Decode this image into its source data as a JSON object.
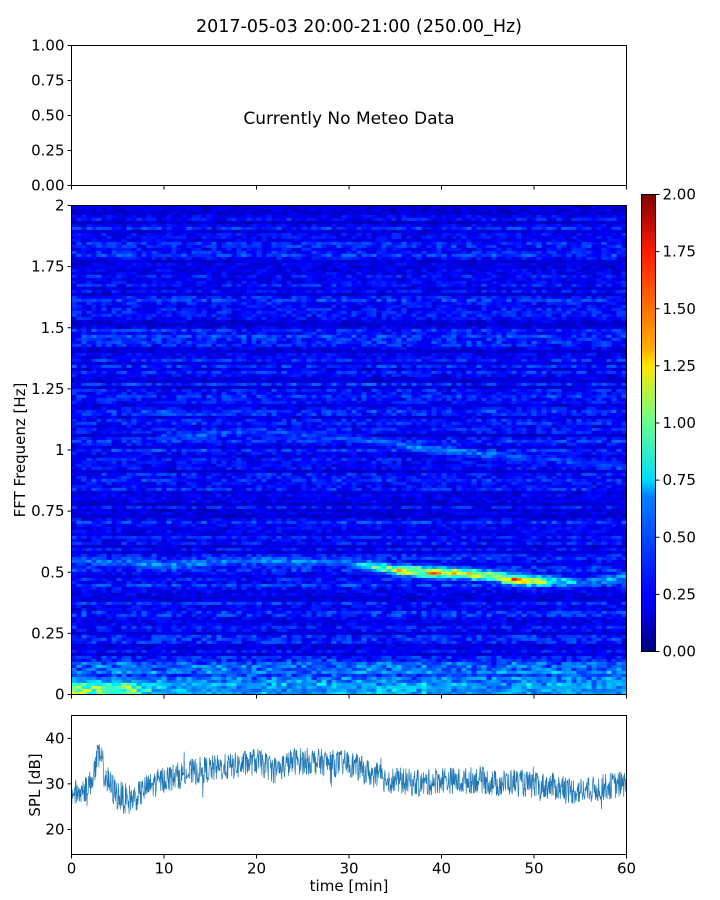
{
  "title": "2017-05-03 20:00-21:00 (250.00_Hz)",
  "chart_data": [
    {
      "id": "meteo",
      "type": "line",
      "message": "Currently No Meteo Data",
      "ylim": [
        0,
        1
      ],
      "yticks": [
        "0.00",
        "0.25",
        "0.50",
        "0.75",
        "1.00"
      ],
      "ytick_values": [
        0,
        0.25,
        0.5,
        0.75,
        1.0
      ],
      "xlim": [
        0,
        60
      ],
      "series": []
    },
    {
      "id": "spectrogram",
      "type": "heatmap",
      "ylabel": "FFT Frequenz [Hz]",
      "xlim": [
        0,
        60
      ],
      "ylim": [
        0,
        2
      ],
      "yticks": [
        "0",
        "0.25",
        "0.5",
        "0.75",
        "1",
        "1.25",
        "1.5",
        "1.75",
        "2"
      ],
      "ytick_values": [
        0,
        0.25,
        0.5,
        0.75,
        1,
        1.25,
        1.5,
        1.75,
        2
      ],
      "colormap": "jet",
      "clim": [
        0,
        2
      ],
      "colorbar_ticks": [
        "0.00",
        "0.25",
        "0.50",
        "0.75",
        "1.00",
        "1.25",
        "1.50",
        "1.75",
        "2.00"
      ],
      "colorbar_values": [
        0,
        0.25,
        0.5,
        0.75,
        1,
        1.25,
        1.5,
        1.75,
        2
      ],
      "features": [
        {
          "name": "band near 0.5 Hz",
          "t": [
            0,
            10,
            20,
            30,
            35,
            40,
            45,
            48,
            55,
            60
          ],
          "f": [
            0.55,
            0.53,
            0.55,
            0.54,
            0.51,
            0.5,
            0.49,
            0.47,
            0.46,
            0.48
          ],
          "level": [
            0.5,
            0.6,
            0.55,
            0.6,
            1.3,
            1.6,
            1.2,
            1.6,
            0.6,
            0.7
          ]
        },
        {
          "name": "band near 1 Hz",
          "t": [
            10,
            20,
            30,
            40,
            50,
            60
          ],
          "f": [
            1.05,
            1.08,
            1.05,
            1.0,
            0.97,
            0.93
          ],
          "level": [
            0.5,
            0.45,
            0.45,
            0.6,
            0.45,
            0.45
          ]
        },
        {
          "name": "low-frequency energy",
          "t": [
            0,
            3,
            6,
            10,
            15,
            20,
            25,
            30,
            35,
            40,
            45,
            50,
            55,
            60
          ],
          "f": [
            0.02,
            0.02,
            0.02,
            0.02,
            0.02,
            0.02,
            0.02,
            0.02,
            0.02,
            0.02,
            0.02,
            0.02,
            0.02,
            0.02
          ],
          "level": [
            1.4,
            1.1,
            1.2,
            0.7,
            0.6,
            0.5,
            0.5,
            0.6,
            0.7,
            0.6,
            0.5,
            0.6,
            0.6,
            0.6
          ]
        }
      ]
    },
    {
      "id": "spl",
      "type": "line",
      "ylabel": "SPL [dB]",
      "xlabel": "time [min]",
      "xlim": [
        0,
        60
      ],
      "ylim": [
        14.5,
        45
      ],
      "yticks": [
        "20",
        "30",
        "40"
      ],
      "ytick_values": [
        20,
        30,
        40
      ],
      "xticks": [
        "0",
        "10",
        "20",
        "30",
        "40",
        "50",
        "60"
      ],
      "xtick_values": [
        0,
        10,
        20,
        30,
        40,
        50,
        60
      ],
      "color": "#1f77b4",
      "series": [
        {
          "x": [
            0,
            1,
            2,
            3,
            4,
            5,
            6,
            7,
            8,
            9,
            10,
            12,
            14,
            16,
            18,
            20,
            22,
            24,
            26,
            28,
            30,
            32,
            34,
            36,
            38,
            40,
            42,
            44,
            46,
            48,
            50,
            52,
            54,
            56,
            58,
            60
          ],
          "y": [
            28,
            28,
            30,
            36,
            30,
            27.5,
            26.5,
            27,
            29,
            30,
            31,
            32,
            33,
            33.5,
            34,
            35,
            33,
            35,
            35,
            34.5,
            34.5,
            32.5,
            31,
            30.5,
            30,
            31,
            30.5,
            31,
            30,
            30.5,
            29.5,
            29.5,
            28.5,
            28.5,
            29.5,
            30
          ],
          "spread": [
            3,
            3,
            3,
            4,
            3.5,
            3.5,
            3.5,
            3,
            3,
            3,
            3,
            3,
            3,
            3,
            3,
            3,
            3,
            3,
            3,
            3,
            3,
            3,
            3,
            3,
            3,
            3,
            3,
            3,
            3,
            3,
            3,
            3,
            3,
            3,
            3,
            3
          ]
        }
      ]
    }
  ]
}
